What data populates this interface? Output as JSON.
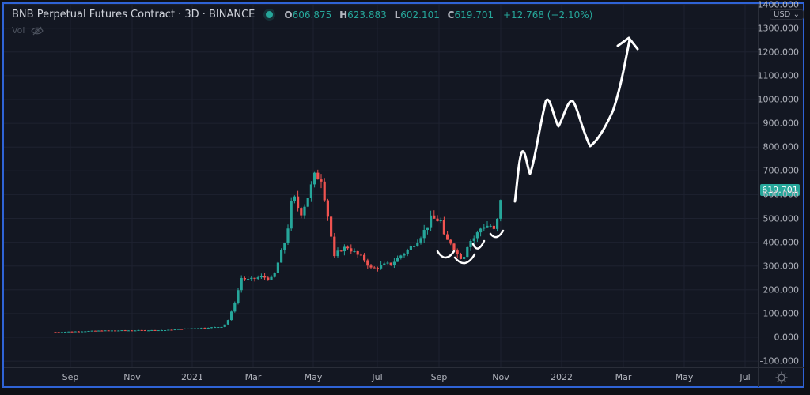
{
  "header": {
    "symbol_title": "BNB Perpetual Futures Contract · 3D · BINANCE",
    "status_dot_color": "#26a69a",
    "ohlc": {
      "open_label": "O",
      "open": "606.875",
      "high_label": "H",
      "high": "623.883",
      "low_label": "L",
      "low": "602.101",
      "close_label": "C",
      "close": "619.701",
      "change": "+12.768 (+2.10%)"
    },
    "volume_label": "Vol",
    "volume_icon": "eye-crossed-icon"
  },
  "price_axis": {
    "currency": "USD",
    "currency_icon": "chevron-down-icon",
    "last_price": "619.701",
    "ticks": [
      "1400.000",
      "1300.000",
      "1200.000",
      "1100.000",
      "1000.000",
      "900.000",
      "800.000",
      "700.000",
      "600.000",
      "500.000",
      "400.000",
      "300.000",
      "200.000",
      "100.000",
      "0.000",
      "-100.000"
    ]
  },
  "time_axis": {
    "ticks": [
      "Sep",
      "Nov",
      "2021",
      "Mar",
      "May",
      "Jul",
      "Sep",
      "Nov",
      "2022",
      "Mar",
      "May",
      "Jul"
    ],
    "settings_icon": "gear-icon"
  },
  "colors": {
    "up": "#26a69a",
    "down": "#ef5350",
    "background": "#131722",
    "frame": "#2f63d6",
    "grid": "#1e2230",
    "annotation": "#ffffff"
  },
  "chart_data": {
    "type": "candlestick",
    "title": "BNB Perpetual Futures Contract · 3D · BINANCE",
    "xlabel": "",
    "ylabel": "USD",
    "ylim": [
      -100,
      1400
    ],
    "grid": true,
    "timeframe": "3D",
    "last_price": 619.701,
    "x_ticks": [
      "Sep",
      "Nov",
      "2021",
      "Mar",
      "May",
      "Jul",
      "Sep",
      "Nov",
      "2022",
      "Mar",
      "May",
      "Jul"
    ],
    "y_ticks": [
      1400,
      1300,
      1200,
      1100,
      1000,
      900,
      800,
      700,
      600,
      500,
      400,
      300,
      200,
      100,
      0,
      -100
    ],
    "approx_price_path": [
      {
        "x": "Aug 2020",
        "y": 22
      },
      {
        "x": "Sep 2020",
        "y": 28
      },
      {
        "x": "Nov 2020",
        "y": 30
      },
      {
        "x": "Jan 2021",
        "y": 40
      },
      {
        "x": "Feb 2021 (early)",
        "y": 55
      },
      {
        "x": "Feb 2021 (mid)",
        "y": 250
      },
      {
        "x": "Mar 2021",
        "y": 250
      },
      {
        "x": "Apr 2021 (mid)",
        "y": 600
      },
      {
        "x": "May 2021 (peak)",
        "y": 680
      },
      {
        "x": "May 2021 (crash)",
        "y": 330
      },
      {
        "x": "Jun 2021",
        "y": 340
      },
      {
        "x": "Jul 2021",
        "y": 300
      },
      {
        "x": "Aug 2021",
        "y": 400
      },
      {
        "x": "Sep 2021 (early)",
        "y": 500
      },
      {
        "x": "Sep 2021 (late)",
        "y": 340
      },
      {
        "x": "Oct 2021",
        "y": 480
      },
      {
        "x": "Nov 2021",
        "y": 619.7
      }
    ],
    "annotations": {
      "smile_arcs_under_lows": 4,
      "projected_drawing": [
        {
          "x": "Nov 2021",
          "y": 570
        },
        {
          "x": "Dec 2021",
          "y": 780
        },
        {
          "x": "Dec 2021",
          "y": 680
        },
        {
          "x": "Dec 2021",
          "y": 1010
        },
        {
          "x": "Jan 2022",
          "y": 880
        },
        {
          "x": "Jan 2022",
          "y": 1000
        },
        {
          "x": "Feb 2022",
          "y": 810
        },
        {
          "x": "Feb 2022",
          "y": 930
        },
        {
          "x": "Mar 2022",
          "y": 1265
        }
      ],
      "arrow_head": "up"
    }
  }
}
